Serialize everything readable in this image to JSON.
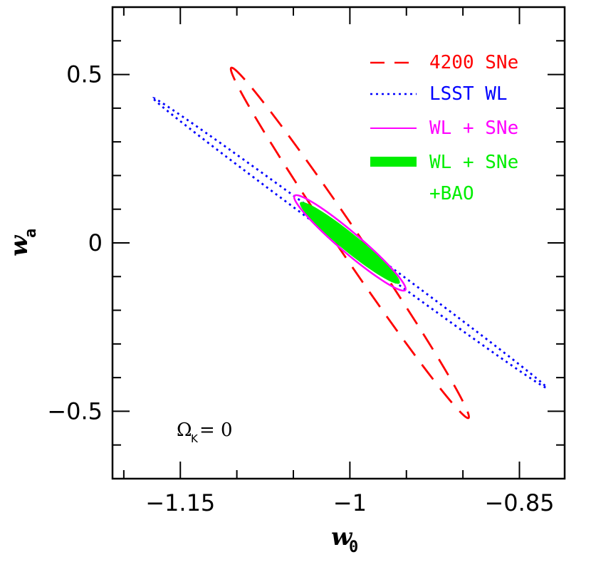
{
  "chart_data": {
    "type": "ellipse-contour",
    "xlabel": "w",
    "xlabel_sub": "0",
    "ylabel": "w",
    "ylabel_sub": "a",
    "xlim": [
      -1.21,
      -0.81
    ],
    "ylim": [
      -0.7,
      0.7
    ],
    "x_ticks": [
      -1.15,
      -1.0,
      -0.85
    ],
    "x_tick_labels": [
      "−1.15",
      "−1",
      "−0.85"
    ],
    "x_minor_step": 0.05,
    "y_ticks": [
      0.5,
      0.0,
      -0.5
    ],
    "y_tick_labels": [
      "0.5",
      "0",
      "−0.5"
    ],
    "y_minor_step": 0.1,
    "annotation": {
      "text": "Ω",
      "sub": "K",
      "suffix": " = 0"
    },
    "series": [
      {
        "name": "4200  SNe",
        "color": "#ff0000",
        "style": "dashed",
        "center": [
          -1.0,
          0.0
        ],
        "points": [
          [
            -1.105,
            0.52
          ],
          [
            -0.905,
            -0.52
          ]
        ],
        "minor_halfwidth_ratio": 0.055
      },
      {
        "name": "LSST  WL",
        "color": "#0000ff",
        "style": "dotted",
        "center": [
          -1.0,
          0.0
        ],
        "points": [
          [
            -1.174,
            0.43
          ],
          [
            -0.826,
            -0.43
          ]
        ],
        "minor_halfwidth_ratio": 0.02
      },
      {
        "name": "WL + SNe",
        "color": "#ff00ff",
        "style": "solid",
        "center": [
          -1.0,
          0.0
        ],
        "points": [
          [
            -1.049,
            0.14
          ],
          [
            -0.951,
            -0.14
          ]
        ],
        "minor_halfwidth_ratio": 0.14
      },
      {
        "name": "WL + SNe",
        "name_line2": "+BAO",
        "color": "#00ee00",
        "style": "filled",
        "center": [
          -1.0,
          0.0
        ],
        "points": [
          [
            -1.044,
            0.12
          ],
          [
            -0.956,
            -0.12
          ]
        ],
        "minor_halfwidth_ratio": 0.14
      }
    ]
  }
}
